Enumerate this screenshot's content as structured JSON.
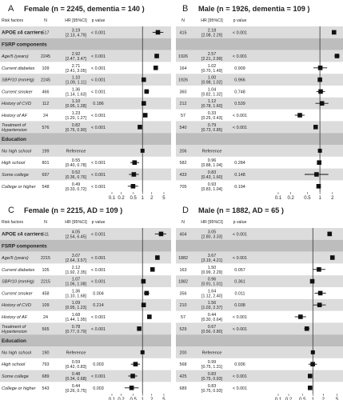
{
  "chart_data": [
    {
      "type": "scatter",
      "panel_letter": "A",
      "title": "Female (n = 2245, dementia = 140 )",
      "header": {
        "factors": "Risk factors",
        "n": "N",
        "hr": "HR [95%CI]",
        "p": "p value"
      },
      "xticks": [
        "0.1",
        "0.2",
        "0.5",
        "1",
        "2",
        "5"
      ],
      "xlim": [
        0.1,
        6
      ],
      "log_x": true,
      "rows": [
        {
          "kind": "data",
          "label": "APOE ε4 carriers",
          "bold": true,
          "n": "517",
          "hr": "3.19",
          "ci": "[2.13, 4.79]",
          "p": "< 0.001",
          "est": 3.19,
          "lo": 2.13,
          "hi": 4.79
        },
        {
          "kind": "section",
          "label": "FSRP components"
        },
        {
          "kind": "data",
          "label": "Age/5 (years)",
          "n": "2245",
          "hr": "2.92",
          "ci": "[2.47, 3.47]",
          "p": "< 0.001",
          "est": 2.92,
          "lo": 2.47,
          "hi": 3.47
        },
        {
          "kind": "data",
          "label": "Current diabetes",
          "n": "109",
          "hr": "2.71",
          "ci": "[2.41, 3.05]",
          "p": "< 0.001",
          "est": 2.71,
          "lo": 2.41,
          "hi": 3.05
        },
        {
          "kind": "data",
          "label": "SBP/10 (mmHg)",
          "n": "2245",
          "hr": "1.10",
          "ci": "[1.09, 1.11]",
          "p": "< 0.001",
          "est": 1.1,
          "lo": 1.09,
          "hi": 1.11
        },
        {
          "kind": "data",
          "label": "Current smoker",
          "n": "466",
          "hr": "1.36",
          "ci": "[1.14, 1.63]",
          "p": "< 0.001",
          "est": 1.36,
          "lo": 1.14,
          "hi": 1.63
        },
        {
          "kind": "data",
          "label": "History of CVD",
          "n": "112",
          "hr": "1.10",
          "ci": "[0.95, 1.28]",
          "p": "0.186",
          "est": 1.1,
          "lo": 0.95,
          "hi": 1.28
        },
        {
          "kind": "data",
          "label": "History of AF",
          "n": "24",
          "hr": "1.23",
          "ci": "[1.20, 1.27]",
          "p": "< 0.001",
          "est": 1.23,
          "lo": 1.2,
          "hi": 1.27
        },
        {
          "kind": "data",
          "label": "Treatment of Hypertension",
          "n": "576",
          "hr": "0.82",
          "ci": "[0.76, 0.90]",
          "p": "< 0.001",
          "est": 0.82,
          "lo": 0.76,
          "hi": 0.9
        },
        {
          "kind": "section",
          "label": "Education"
        },
        {
          "kind": "ref",
          "label": "No high school",
          "n": "199",
          "hr": "Reference",
          "ci": "",
          "p": "",
          "est": 1.0
        },
        {
          "kind": "data",
          "label": "High school",
          "n": "801",
          "hr": "0.55",
          "ci": "[0.40, 0.78]",
          "p": "< 0.001",
          "est": 0.55,
          "lo": 0.4,
          "hi": 0.78
        },
        {
          "kind": "data",
          "label": "Some college",
          "n": "697",
          "hr": "0.52",
          "ci": "[0.36, 0.76]",
          "p": "< 0.001",
          "est": 0.52,
          "lo": 0.36,
          "hi": 0.76
        },
        {
          "kind": "data",
          "label": "College or higher",
          "n": "548",
          "hr": "0.49",
          "ci": "[0.33, 0.72]",
          "p": "< 0.001",
          "est": 0.49,
          "lo": 0.33,
          "hi": 0.72
        }
      ]
    },
    {
      "type": "scatter",
      "panel_letter": "B",
      "title": "Male (n = 1926, dementia = 109 )",
      "header": {
        "factors": "",
        "n": "N",
        "hr": "HR [95%CI]",
        "p": "p value"
      },
      "xticks": [
        "0.1",
        "0.2",
        "0.5",
        "1",
        "2"
      ],
      "xlim": [
        0.1,
        3
      ],
      "log_x": true,
      "rows": [
        {
          "kind": "data",
          "label": "",
          "n": "415",
          "hr": "2.18",
          "ci": "[2.08, 2.29]",
          "p": "< 0.001",
          "est": 2.18,
          "lo": 2.08,
          "hi": 2.29
        },
        {
          "kind": "section",
          "label": ""
        },
        {
          "kind": "data",
          "label": "",
          "n": "1926",
          "hr": "2.57",
          "ci": "[2.21, 2.99]",
          "p": "< 0.001",
          "est": 2.57,
          "lo": 2.21,
          "hi": 2.99
        },
        {
          "kind": "data",
          "label": "",
          "n": "164",
          "hr": "1.02",
          "ci": "[0.70, 1.49]",
          "p": "0.909",
          "est": 1.02,
          "lo": 0.7,
          "hi": 1.49
        },
        {
          "kind": "data",
          "label": "",
          "n": "1926",
          "hr": "1.00",
          "ci": "[0.98, 1.02]",
          "p": "0.966",
          "est": 1.0,
          "lo": 0.98,
          "hi": 1.02
        },
        {
          "kind": "data",
          "label": "",
          "n": "360",
          "hr": "1.04",
          "ci": "[0.82, 1.32]",
          "p": "0.748",
          "est": 1.04,
          "lo": 0.82,
          "hi": 1.32
        },
        {
          "kind": "data",
          "label": "",
          "n": "212",
          "hr": "1.12",
          "ci": "[0.78, 1.60]",
          "p": "0.539",
          "est": 1.12,
          "lo": 0.78,
          "hi": 1.6
        },
        {
          "kind": "data",
          "label": "",
          "n": "57",
          "hr": "0.33",
          "ci": "[0.25, 0.43]",
          "p": "< 0.001",
          "est": 0.33,
          "lo": 0.25,
          "hi": 0.43
        },
        {
          "kind": "data",
          "label": "",
          "n": "540",
          "hr": "0.79",
          "ci": "[0.73, 0.85]",
          "p": "< 0.001",
          "est": 0.79,
          "lo": 0.73,
          "hi": 0.85
        },
        {
          "kind": "section",
          "label": ""
        },
        {
          "kind": "ref",
          "label": "",
          "n": "206",
          "hr": "Reference",
          "ci": "",
          "p": "",
          "est": 1.0
        },
        {
          "kind": "data",
          "label": "",
          "n": "582",
          "hr": "0.96",
          "ci": "[0.88, 1.04]",
          "p": "0.284",
          "est": 0.96,
          "lo": 0.88,
          "hi": 1.04
        },
        {
          "kind": "data",
          "label": "",
          "n": "433",
          "hr": "0.83",
          "ci": "[0.43, 1.60]",
          "p": "0.148",
          "est": 0.83,
          "lo": 0.43,
          "hi": 1.6
        },
        {
          "kind": "data",
          "label": "",
          "n": "705",
          "hr": "0.93",
          "ci": "[0.83, 1.04]",
          "p": "0.194",
          "est": 0.93,
          "lo": 0.83,
          "hi": 1.04
        }
      ]
    },
    {
      "type": "scatter",
      "panel_letter": "C",
      "title": "Female (n = 2215, AD = 109 )",
      "header": {
        "factors": "Risk factors",
        "n": "N",
        "hr": "HR [95%CI]",
        "p": "p value"
      },
      "xticks": [
        "0.1",
        "0.2",
        "0.5",
        "1",
        "2",
        "5"
      ],
      "xlim": [
        0.1,
        6
      ],
      "log_x": true,
      "rows": [
        {
          "kind": "data",
          "label": "APOE ε4 carriers",
          "bold": true,
          "n": "511",
          "hr": "4.05",
          "ci": "[2.54, 6.45]",
          "p": "< 0.001",
          "est": 4.05,
          "lo": 2.54,
          "hi": 6.45
        },
        {
          "kind": "section",
          "label": "FSRP components"
        },
        {
          "kind": "data",
          "label": "Age/5 (years)",
          "n": "2215",
          "hr": "3.07",
          "ci": "[2.64, 3.57]",
          "p": "< 0.001",
          "est": 3.07,
          "lo": 2.64,
          "hi": 3.57
        },
        {
          "kind": "data",
          "label": "Current diabetes",
          "n": "105",
          "hr": "2.12",
          "ci": "[1.92, 2.35]",
          "p": "< 0.001",
          "est": 2.12,
          "lo": 1.92,
          "hi": 2.35
        },
        {
          "kind": "data",
          "label": "SBP/10 (mmHg)",
          "n": "2215",
          "hr": "1.07",
          "ci": "[1.06, 1.08]",
          "p": "< 0.001",
          "est": 1.07,
          "lo": 1.06,
          "hi": 1.08
        },
        {
          "kind": "data",
          "label": "Current smoker",
          "n": "458",
          "hr": "1.36",
          "ci": "[1.10, 1.68]",
          "p": "0.004",
          "est": 1.36,
          "lo": 1.1,
          "hi": 1.68
        },
        {
          "kind": "data",
          "label": "History of CVD",
          "n": "109",
          "hr": "1.09",
          "ci": "[0.95, 1.23]",
          "p": "0.214",
          "est": 1.09,
          "lo": 0.95,
          "hi": 1.23
        },
        {
          "kind": "data",
          "label": "History of AF",
          "n": "24",
          "hr": "1.68",
          "ci": "[1.44, 1.95]",
          "p": "< 0.001",
          "est": 1.68,
          "lo": 1.44,
          "hi": 1.95
        },
        {
          "kind": "data",
          "label": "Treatment of Hypertension",
          "n": "565",
          "hr": "0.78",
          "ci": "[0.77, 0.79]",
          "p": "< 0.001",
          "est": 0.78,
          "lo": 0.77,
          "hi": 0.79
        },
        {
          "kind": "section",
          "label": "Education"
        },
        {
          "kind": "ref",
          "label": "No high school",
          "n": "190",
          "hr": "Reference",
          "ci": "",
          "p": "",
          "est": 1.0
        },
        {
          "kind": "data",
          "label": "High school",
          "n": "793",
          "hr": "0.59",
          "ci": "[0.42, 0.83]",
          "p": "0.003",
          "est": 0.59,
          "lo": 0.42,
          "hi": 0.83
        },
        {
          "kind": "data",
          "label": "Some college",
          "n": "689",
          "hr": "0.48",
          "ci": "[0.34, 0.68]",
          "p": "< 0.001",
          "est": 0.48,
          "lo": 0.34,
          "hi": 0.68
        },
        {
          "kind": "data",
          "label": "College or higher",
          "n": "543",
          "hr": "0.44",
          "ci": "[0.26, 0.75]",
          "p": "0.003",
          "est": 0.44,
          "lo": 0.26,
          "hi": 0.75
        }
      ]
    },
    {
      "type": "scatter",
      "panel_letter": "D",
      "title": "Male (n = 1882, AD = 65 )",
      "header": {
        "factors": "",
        "n": "N",
        "hr": "HR [95%CI]",
        "p": "p value"
      },
      "xticks": [
        "0.1",
        "0.2",
        "0.5",
        "1",
        "2",
        "5"
      ],
      "xlim": [
        0.1,
        6
      ],
      "log_x": true,
      "rows": [
        {
          "kind": "data",
          "label": "",
          "n": "404",
          "hr": "3.05",
          "ci": "[2.80, 3.33]",
          "p": "< 0.001",
          "est": 3.05,
          "lo": 2.8,
          "hi": 3.33
        },
        {
          "kind": "section",
          "label": ""
        },
        {
          "kind": "data",
          "label": "",
          "n": "1882",
          "hr": "3.67",
          "ci": "[3.19, 4.21]",
          "p": "< 0.001",
          "est": 3.67,
          "lo": 3.19,
          "hi": 4.21
        },
        {
          "kind": "data",
          "label": "",
          "n": "163",
          "hr": "1.50",
          "ci": "[0.99, 2.29]",
          "p": "0.057",
          "est": 1.5,
          "lo": 0.99,
          "hi": 2.29
        },
        {
          "kind": "data",
          "label": "",
          "n": "1882",
          "hr": "0.96",
          "ci": "[0.91, 1.01]",
          "p": "0.361",
          "est": 0.96,
          "lo": 0.91,
          "hi": 1.01
        },
        {
          "kind": "data",
          "label": "",
          "n": "356",
          "hr": "1.64",
          "ci": "[1.12, 2.40]",
          "p": "0.011",
          "est": 1.64,
          "lo": 1.12,
          "hi": 2.4
        },
        {
          "kind": "data",
          "label": "",
          "n": "210",
          "hr": "1.56",
          "ci": "[1.03, 2.37]",
          "p": "0.038",
          "est": 1.56,
          "lo": 1.03,
          "hi": 2.37
        },
        {
          "kind": "data",
          "label": "",
          "n": "57",
          "hr": "0.44",
          "ci": "[0.30, 0.64]",
          "p": "< 0.001",
          "est": 0.44,
          "lo": 0.3,
          "hi": 0.64
        },
        {
          "kind": "data",
          "label": "",
          "n": "529",
          "hr": "0.67",
          "ci": "[0.56, 0.80]",
          "p": "< 0.001",
          "est": 0.67,
          "lo": 0.56,
          "hi": 0.8
        },
        {
          "kind": "section",
          "label": ""
        },
        {
          "kind": "ref",
          "label": "",
          "n": "200",
          "hr": "Reference",
          "ci": "",
          "p": "",
          "est": 1.0
        },
        {
          "kind": "data",
          "label": "",
          "n": "568",
          "hr": "0.99",
          "ci": "[0.75, 1.31]",
          "p": "0.936",
          "est": 0.99,
          "lo": 0.75,
          "hi": 1.31
        },
        {
          "kind": "data",
          "label": "",
          "n": "425",
          "hr": "0.83",
          "ci": "[0.75, 0.93]",
          "p": "< 0.001",
          "est": 0.83,
          "lo": 0.75,
          "hi": 0.93
        },
        {
          "kind": "data",
          "label": "",
          "n": "689",
          "hr": "0.83",
          "ci": "[0.75, 0.93]",
          "p": "< 0.001",
          "est": 0.83,
          "lo": 0.75,
          "hi": 0.93
        }
      ]
    }
  ]
}
